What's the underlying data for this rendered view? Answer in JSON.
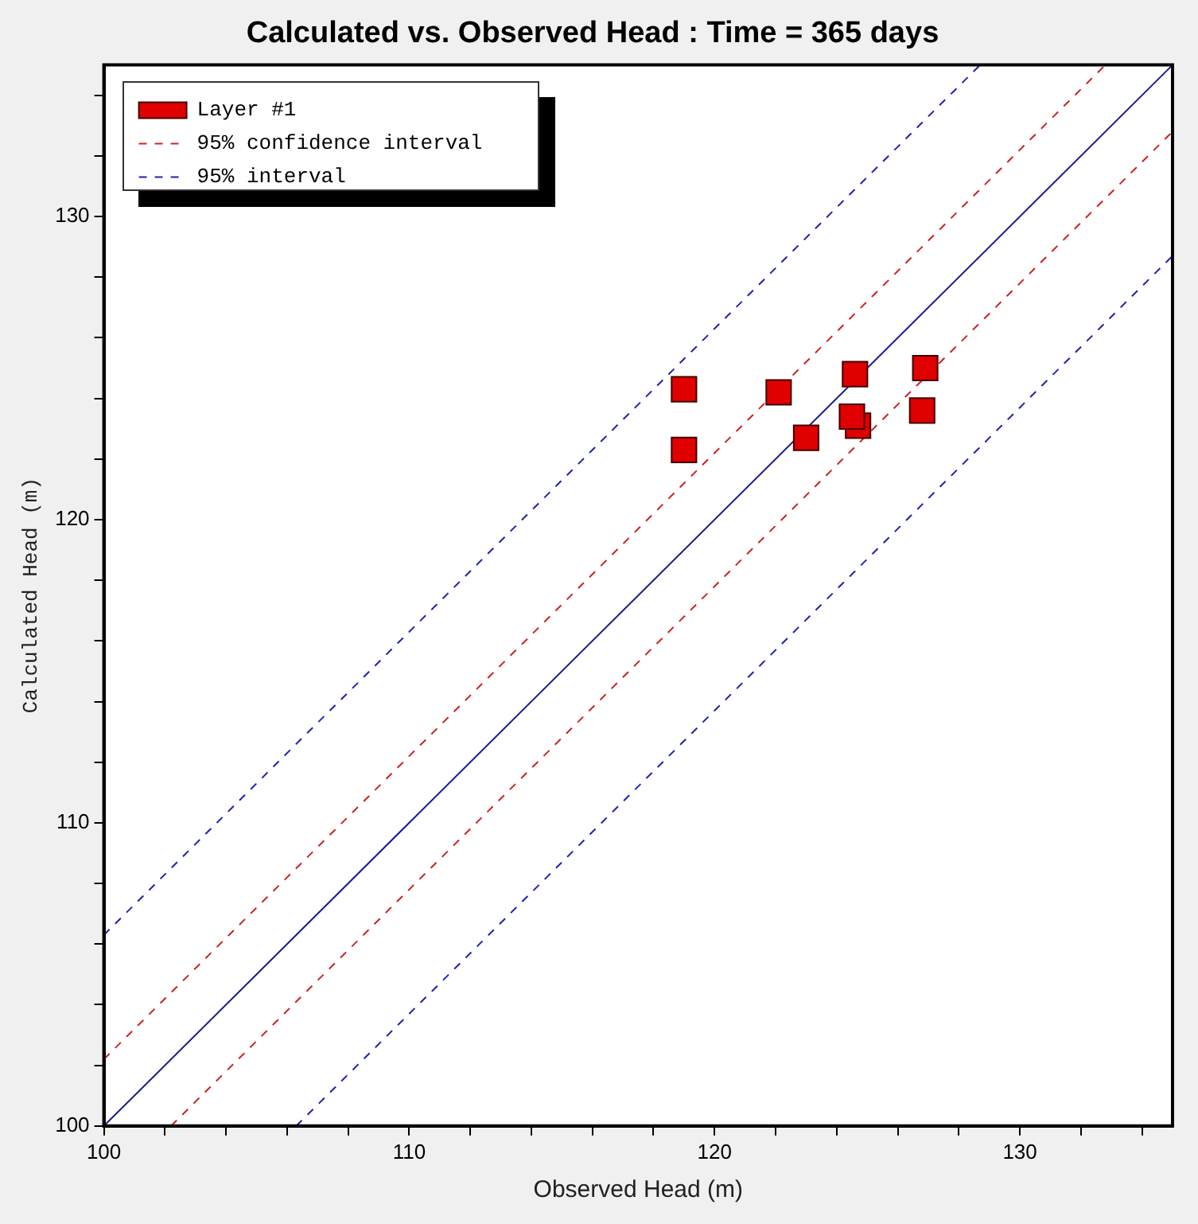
{
  "chart_data": {
    "type": "scatter",
    "title": "Calculated vs. Observed Head : Time = 365 days",
    "xlabel": "Observed Head (m)",
    "ylabel": "Calculated Head (m)",
    "xlim": [
      100,
      135
    ],
    "ylim": [
      100,
      135
    ],
    "xticks": [
      100,
      {
        "value": 102,
        "label": null
      },
      {
        "value": 104,
        "label": null
      },
      {
        "value": 106,
        "label": null
      },
      {
        "value": 108,
        "label": null
      },
      110,
      {
        "value": 112,
        "label": null
      },
      {
        "value": 114,
        "label": null
      },
      {
        "value": 116,
        "label": null
      },
      {
        "value": 118,
        "label": null
      },
      120,
      {
        "value": 122,
        "label": null
      },
      {
        "value": 124,
        "label": null
      },
      {
        "value": 126,
        "label": null
      },
      {
        "value": 128,
        "label": null
      },
      130,
      {
        "value": 132,
        "label": null
      },
      {
        "value": 134,
        "label": null
      }
    ],
    "yticks": [
      100,
      {
        "value": 102,
        "label": null
      },
      {
        "value": 104,
        "label": null
      },
      {
        "value": 106,
        "label": null
      },
      {
        "value": 108,
        "label": null
      },
      110,
      {
        "value": 112,
        "label": null
      },
      {
        "value": 114,
        "label": null
      },
      {
        "value": 116,
        "label": null
      },
      {
        "value": 118,
        "label": null
      },
      120,
      {
        "value": 122,
        "label": null
      },
      {
        "value": 124,
        "label": null
      },
      {
        "value": 126,
        "label": null
      },
      {
        "value": 128,
        "label": null
      },
      130,
      {
        "value": 132,
        "label": null
      },
      {
        "value": 134,
        "label": null
      }
    ],
    "legend": "top left",
    "series": [
      {
        "name": "Layer #1",
        "marker": "square",
        "color": "#e00000",
        "x": [
          119.0,
          119.0,
          122.1,
          123.0,
          124.6,
          124.7,
          124.5,
          126.9,
          126.8
        ],
        "values": [
          124.3,
          122.3,
          124.2,
          122.7,
          124.8,
          123.1,
          123.4,
          125.0,
          123.6
        ]
      },
      {
        "name": "95% confidence interval",
        "type": "line",
        "color": "#d02020",
        "line_style": "dashed",
        "x": [
          100,
          132.8
        ],
        "values": [
          102.2,
          135
        ]
      },
      {
        "name": "95% interval",
        "type": "line",
        "color": "#2020b0",
        "line_style": "dashed",
        "x": [
          100,
          128.7
        ],
        "values": [
          106.3,
          135
        ]
      },
      {
        "type": "line",
        "color": "#d02020",
        "line_style": "dashed",
        "x": [
          102.2,
          135
        ],
        "values": [
          100,
          132.8
        ]
      },
      {
        "type": "line",
        "color": "#2020b0",
        "line_style": "dashed",
        "x": [
          106.3,
          135
        ],
        "values": [
          100,
          128.7
        ]
      },
      {
        "type": "line",
        "color": "#1a1a8c",
        "line_style": "solid",
        "x": [
          100,
          135
        ],
        "values": [
          100,
          135
        ]
      }
    ]
  }
}
